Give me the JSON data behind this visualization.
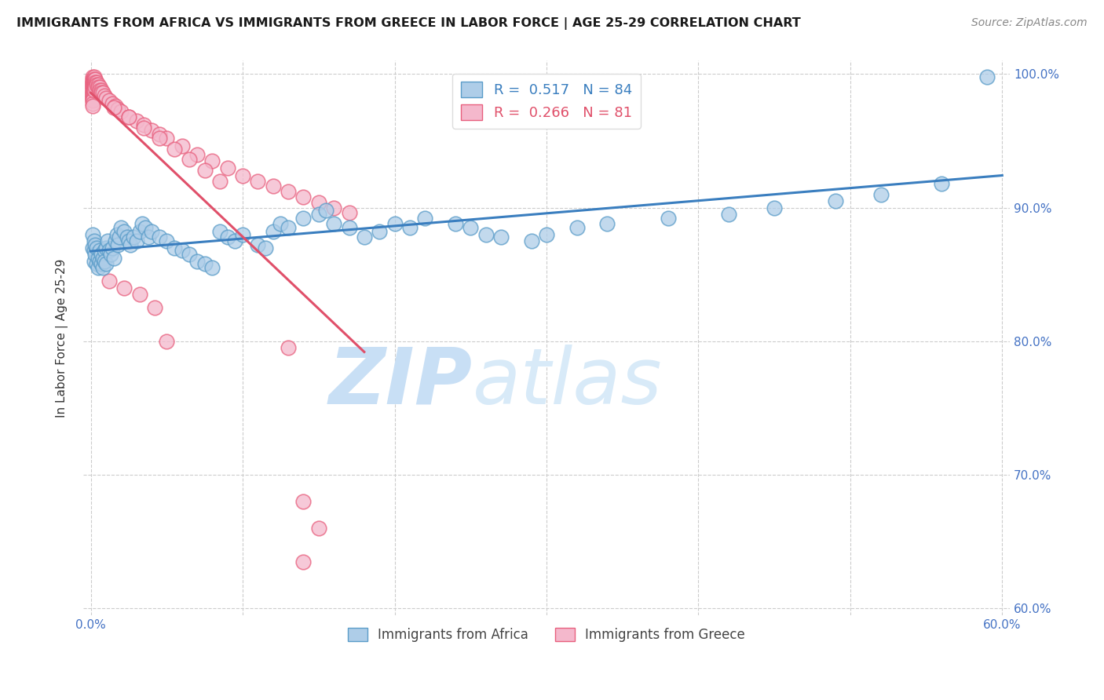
{
  "title": "IMMIGRANTS FROM AFRICA VS IMMIGRANTS FROM GREECE IN LABOR FORCE | AGE 25-29 CORRELATION CHART",
  "source": "Source: ZipAtlas.com",
  "ylabel": "In Labor Force | Age 25-29",
  "xlim": [
    -0.005,
    0.605
  ],
  "ylim": [
    0.595,
    1.01
  ],
  "xticks": [
    0.0,
    0.1,
    0.2,
    0.3,
    0.4,
    0.5,
    0.6
  ],
  "xticklabels": [
    "0.0%",
    "",
    "",
    "",
    "",
    "",
    "60.0%"
  ],
  "yticks": [
    0.6,
    0.7,
    0.8,
    0.9,
    1.0
  ],
  "yticklabels_right": [
    "60.0%",
    "70.0%",
    "80.0%",
    "90.0%",
    "100.0%"
  ],
  "africa_color": "#aecde8",
  "africa_edge": "#5b9dc9",
  "greece_color": "#f4b8cc",
  "greece_edge": "#e8607e",
  "africa_R": 0.517,
  "africa_N": 84,
  "greece_R": 0.266,
  "greece_N": 81,
  "trend_blue": "#3a7ebf",
  "trend_pink": "#e0506a",
  "watermark_zip": "ZIP",
  "watermark_atlas": "atlas",
  "watermark_color": "#c8dff5",
  "legend_label_africa": "Immigrants from Africa",
  "legend_label_greece": "Immigrants from Greece",
  "tick_color": "#4472c4",
  "grid_color": "#cccccc",
  "title_color": "#1a1a1a",
  "source_color": "#888888",
  "ylabel_color": "#333333",
  "africa_x": [
    0.001,
    0.001,
    0.002,
    0.002,
    0.002,
    0.003,
    0.003,
    0.004,
    0.004,
    0.005,
    0.005,
    0.006,
    0.006,
    0.007,
    0.007,
    0.008,
    0.008,
    0.009,
    0.009,
    0.01,
    0.01,
    0.011,
    0.012,
    0.013,
    0.014,
    0.015,
    0.016,
    0.017,
    0.018,
    0.019,
    0.02,
    0.022,
    0.024,
    0.025,
    0.026,
    0.028,
    0.03,
    0.032,
    0.034,
    0.036,
    0.038,
    0.04,
    0.045,
    0.05,
    0.055,
    0.06,
    0.065,
    0.07,
    0.075,
    0.08,
    0.085,
    0.09,
    0.095,
    0.1,
    0.11,
    0.115,
    0.12,
    0.125,
    0.13,
    0.14,
    0.15,
    0.155,
    0.16,
    0.17,
    0.18,
    0.19,
    0.2,
    0.21,
    0.22,
    0.24,
    0.25,
    0.26,
    0.27,
    0.29,
    0.3,
    0.32,
    0.34,
    0.38,
    0.42,
    0.45,
    0.49,
    0.52,
    0.56,
    0.59
  ],
  "africa_y": [
    0.88,
    0.87,
    0.875,
    0.868,
    0.86,
    0.872,
    0.865,
    0.858,
    0.87,
    0.862,
    0.855,
    0.868,
    0.86,
    0.865,
    0.858,
    0.862,
    0.855,
    0.868,
    0.86,
    0.87,
    0.858,
    0.875,
    0.868,
    0.865,
    0.87,
    0.862,
    0.875,
    0.88,
    0.872,
    0.878,
    0.885,
    0.882,
    0.878,
    0.875,
    0.872,
    0.878,
    0.875,
    0.882,
    0.888,
    0.885,
    0.878,
    0.882,
    0.878,
    0.875,
    0.87,
    0.868,
    0.865,
    0.86,
    0.858,
    0.855,
    0.882,
    0.878,
    0.875,
    0.88,
    0.872,
    0.87,
    0.882,
    0.888,
    0.885,
    0.892,
    0.895,
    0.898,
    0.888,
    0.885,
    0.878,
    0.882,
    0.888,
    0.885,
    0.892,
    0.888,
    0.885,
    0.88,
    0.878,
    0.875,
    0.88,
    0.885,
    0.888,
    0.892,
    0.895,
    0.9,
    0.905,
    0.91,
    0.918,
    0.998
  ],
  "greece_x": [
    0.001,
    0.001,
    0.001,
    0.001,
    0.001,
    0.001,
    0.001,
    0.001,
    0.001,
    0.001,
    0.001,
    0.001,
    0.001,
    0.001,
    0.001,
    0.001,
    0.001,
    0.001,
    0.001,
    0.001,
    0.002,
    0.002,
    0.002,
    0.002,
    0.002,
    0.002,
    0.003,
    0.003,
    0.003,
    0.003,
    0.004,
    0.004,
    0.005,
    0.005,
    0.006,
    0.006,
    0.007,
    0.007,
    0.008,
    0.009,
    0.01,
    0.012,
    0.014,
    0.016,
    0.018,
    0.02,
    0.025,
    0.03,
    0.035,
    0.04,
    0.045,
    0.05,
    0.06,
    0.07,
    0.08,
    0.09,
    0.1,
    0.11,
    0.12,
    0.13,
    0.14,
    0.15,
    0.16,
    0.17,
    0.015,
    0.025,
    0.035,
    0.045,
    0.055,
    0.065,
    0.075,
    0.085,
    0.012,
    0.022,
    0.032,
    0.042,
    0.05,
    0.13,
    0.14,
    0.15,
    0.14
  ],
  "greece_y": [
    0.998,
    0.996,
    0.995,
    0.994,
    0.993,
    0.992,
    0.991,
    0.99,
    0.989,
    0.988,
    0.987,
    0.986,
    0.985,
    0.984,
    0.983,
    0.982,
    0.981,
    0.98,
    0.978,
    0.976,
    0.998,
    0.996,
    0.994,
    0.992,
    0.99,
    0.988,
    0.996,
    0.994,
    0.992,
    0.99,
    0.994,
    0.992,
    0.992,
    0.99,
    0.99,
    0.988,
    0.988,
    0.986,
    0.986,
    0.984,
    0.982,
    0.98,
    0.978,
    0.976,
    0.974,
    0.972,
    0.968,
    0.965,
    0.962,
    0.958,
    0.955,
    0.952,
    0.946,
    0.94,
    0.935,
    0.93,
    0.924,
    0.92,
    0.916,
    0.912,
    0.908,
    0.904,
    0.9,
    0.896,
    0.975,
    0.968,
    0.96,
    0.952,
    0.944,
    0.936,
    0.928,
    0.92,
    0.845,
    0.84,
    0.835,
    0.825,
    0.8,
    0.795,
    0.68,
    0.66,
    0.635
  ]
}
